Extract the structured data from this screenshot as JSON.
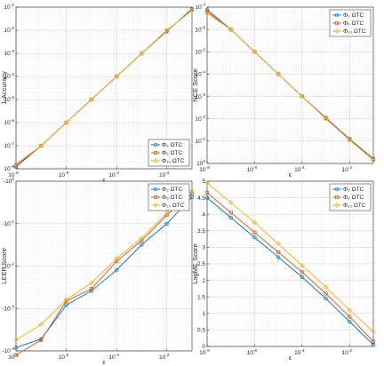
{
  "chart_data": [
    {
      "id": "acc",
      "type": "line",
      "xscale": "log",
      "yscale": "log",
      "xlim": [
        1e-08,
        0.1
      ],
      "ylim": [
        1e-08,
        0.1
      ],
      "xlabel": "ϵ",
      "ylabel": "1-Accuracy",
      "x_ticks": [
        "10",
        "10",
        "10",
        "10"
      ],
      "x_tick_exps": [
        "-8",
        "-6",
        "-4",
        "-2"
      ],
      "y_ticks": [
        "10",
        "10",
        "10",
        "10",
        "10",
        "10",
        "10",
        "10"
      ],
      "y_tick_exps": [
        "-1",
        "-2",
        "-3",
        "-4",
        "-5",
        "-6",
        "-7",
        "-8"
      ],
      "grid": true,
      "legend": "bottom-right",
      "x": [
        1e-08,
        1e-07,
        1e-06,
        1e-05,
        0.0001,
        0.001,
        0.01,
        0.1
      ],
      "series": [
        {
          "name": "Φ₃ ΩTC",
          "color": "#0072BD",
          "marker": "circle",
          "values": [
            1.2e-08,
            1e-07,
            1e-06,
            1e-05,
            0.0001,
            0.001,
            0.009,
            0.085
          ]
        },
        {
          "name": "Φ₆ ΩTC",
          "color": "#D95319",
          "marker": "square",
          "values": [
            1.4e-08,
            1e-07,
            1e-06,
            1e-05,
            0.0001,
            0.001,
            0.0095,
            0.078
          ]
        },
        {
          "name": "Φ₁₀ ΩTC",
          "color": "#EDB120",
          "marker": "diamond",
          "values": [
            1.6e-08,
            1e-07,
            1e-06,
            1e-05,
            0.0001,
            0.001,
            0.01,
            0.072
          ]
        }
      ]
    },
    {
      "id": "nce",
      "type": "line",
      "xscale": "log",
      "yscale": "log",
      "xlim": [
        1e-08,
        0.1
      ],
      "ylim": [
        1e-07,
        1
      ],
      "xlabel": "ϵ",
      "ylabel": "NCE Score",
      "x_ticks": [
        "10",
        "10",
        "10",
        "10"
      ],
      "x_tick_exps": [
        "-8",
        "-6",
        "-4",
        "-2"
      ],
      "y_ticks": [
        "10",
        "10",
        "10",
        "10",
        "10",
        "10",
        "10",
        "10"
      ],
      "y_tick_exps": [
        "-7",
        "-6",
        "-5",
        "-4",
        "-3",
        "-2",
        "-1",
        "0"
      ],
      "y_reversed": true,
      "grid": true,
      "legend": "top-right",
      "x": [
        1e-08,
        1e-07,
        1e-06,
        1e-05,
        0.0001,
        0.001,
        0.01,
        0.1
      ],
      "series": [
        {
          "name": "Φ₃ ΩTC",
          "color": "#0072BD",
          "marker": "circle",
          "values": [
            1.3e-07,
            1e-06,
            1e-05,
            0.0001,
            0.001,
            0.009,
            0.08,
            0.62
          ]
        },
        {
          "name": "Φ₆ ΩTC",
          "color": "#D95319",
          "marker": "square",
          "values": [
            1.6e-07,
            1e-06,
            1e-05,
            0.0001,
            0.001,
            0.0095,
            0.085,
            0.66
          ]
        },
        {
          "name": "Φ₁₀ ΩTC",
          "color": "#EDB120",
          "marker": "diamond",
          "values": [
            1.9e-07,
            1e-06,
            1e-05,
            0.0001,
            0.001,
            0.01,
            0.09,
            0.7
          ]
        }
      ]
    },
    {
      "id": "leep",
      "type": "line",
      "xscale": "log",
      "yscale": "log",
      "xlim": [
        1e-08,
        0.1
      ],
      "ylim": [
        0.0001,
        1
      ],
      "xlabel": "ϵ",
      "ylabel": "LEEP Score",
      "x_ticks": [
        "10",
        "10",
        "10",
        "10"
      ],
      "x_tick_exps": [
        "-8",
        "-6",
        "-4",
        "-2"
      ],
      "y_ticks": [
        "-10",
        "-10",
        "-10",
        "-10",
        "-10"
      ],
      "y_tick_exps": [
        "-4",
        "-3",
        "-2",
        "-1",
        "0"
      ],
      "grid": true,
      "legend": "top-right",
      "x": [
        1e-08,
        1e-07,
        1e-06,
        1e-05,
        0.0001,
        0.001,
        0.01,
        0.1
      ],
      "series": [
        {
          "name": "Φ₃ ΩTC",
          "color": "#0072BD",
          "marker": "circle",
          "values": [
            0.00012,
            0.00019,
            0.0012,
            0.0026,
            0.008,
            0.032,
            0.1,
            0.42
          ]
        },
        {
          "name": "Φ₆ ΩTC",
          "color": "#D95319",
          "marker": "square",
          "values": [
            8e-05,
            0.00018,
            0.0015,
            0.0029,
            0.013,
            0.04,
            0.16,
            0.5
          ]
        },
        {
          "name": "Φ₁₀ ΩTC",
          "color": "#EDB120",
          "marker": "diamond",
          "values": [
            0.00018,
            0.00042,
            0.0016,
            0.004,
            0.015,
            0.046,
            0.18,
            0.6
          ]
        }
      ]
    },
    {
      "id": "logme",
      "type": "line",
      "xscale": "log",
      "yscale": "linear",
      "xlim": [
        1e-08,
        0.1
      ],
      "ylim": [
        0,
        5
      ],
      "xlabel": "ϵ",
      "ylabel": "LogME Score",
      "x_ticks": [
        "10",
        "10",
        "10",
        "10"
      ],
      "x_tick_exps": [
        "-8",
        "-6",
        "-4",
        "-2"
      ],
      "y_ticks": [
        "0",
        "0.5",
        "1",
        "1.5",
        "2",
        "2.5",
        "3",
        "3.5",
        "4",
        "4.5",
        "5"
      ],
      "grid": true,
      "legend": "top-right",
      "x": [
        1e-08,
        1e-07,
        1e-06,
        1e-05,
        0.0001,
        0.001,
        0.01,
        0.1
      ],
      "series": [
        {
          "name": "Φ₃ ΩTC",
          "color": "#0072BD",
          "marker": "circle",
          "values": [
            4.5,
            3.9,
            3.3,
            2.7,
            2.1,
            1.45,
            0.75,
            0.05
          ]
        },
        {
          "name": "Φ₆ ΩTC",
          "color": "#D95319",
          "marker": "square",
          "values": [
            4.65,
            4.05,
            3.45,
            2.85,
            2.25,
            1.6,
            0.9,
            0.15
          ]
        },
        {
          "name": "Φ₁₀ ΩTC",
          "color": "#EDB120",
          "marker": "diamond",
          "values": [
            4.95,
            4.35,
            3.75,
            3.1,
            2.45,
            1.8,
            1.1,
            0.45
          ]
        }
      ]
    }
  ]
}
